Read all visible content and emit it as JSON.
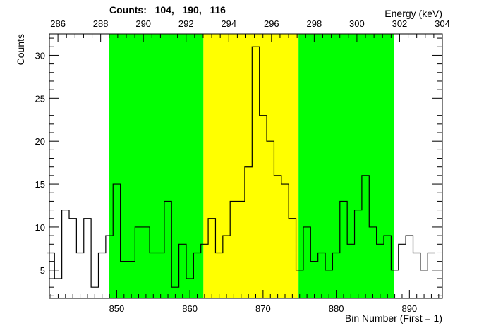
{
  "chart_data": {
    "type": "histogram",
    "title": "Counts:   104,   190,   116",
    "ylabel": "Counts",
    "xlabel": "Bin Number (First = 1)",
    "x2label": "Energy (keV)",
    "xlim": [
      840.8,
      894.5
    ],
    "ylim": [
      1.7,
      32.5
    ],
    "x2lim": [
      285.6,
      304.0
    ],
    "bins": [
      {
        "x": 841,
        "y": 7
      },
      {
        "x": 842,
        "y": 4
      },
      {
        "x": 843,
        "y": 12
      },
      {
        "x": 844,
        "y": 11
      },
      {
        "x": 845,
        "y": 7
      },
      {
        "x": 846,
        "y": 11
      },
      {
        "x": 847,
        "y": 3
      },
      {
        "x": 848,
        "y": 7
      },
      {
        "x": 849,
        "y": 9
      },
      {
        "x": 850,
        "y": 15
      },
      {
        "x": 851,
        "y": 6
      },
      {
        "x": 852,
        "y": 6
      },
      {
        "x": 853,
        "y": 10
      },
      {
        "x": 854,
        "y": 10
      },
      {
        "x": 855,
        "y": 7
      },
      {
        "x": 856,
        "y": 7
      },
      {
        "x": 857,
        "y": 13
      },
      {
        "x": 858,
        "y": 3
      },
      {
        "x": 859,
        "y": 8
      },
      {
        "x": 860,
        "y": 4
      },
      {
        "x": 861,
        "y": 7
      },
      {
        "x": 862,
        "y": 8
      },
      {
        "x": 863,
        "y": 11
      },
      {
        "x": 864,
        "y": 7
      },
      {
        "x": 865,
        "y": 9
      },
      {
        "x": 866,
        "y": 13
      },
      {
        "x": 867,
        "y": 13
      },
      {
        "x": 868,
        "y": 17
      },
      {
        "x": 869,
        "y": 31
      },
      {
        "x": 870,
        "y": 23
      },
      {
        "x": 871,
        "y": 20
      },
      {
        "x": 872,
        "y": 16
      },
      {
        "x": 873,
        "y": 15
      },
      {
        "x": 874,
        "y": 11
      },
      {
        "x": 875,
        "y": 5
      },
      {
        "x": 876,
        "y": 10
      },
      {
        "x": 877,
        "y": 6
      },
      {
        "x": 878,
        "y": 7
      },
      {
        "x": 879,
        "y": 5
      },
      {
        "x": 880,
        "y": 7
      },
      {
        "x": 881,
        "y": 13
      },
      {
        "x": 882,
        "y": 8
      },
      {
        "x": 883,
        "y": 12
      },
      {
        "x": 884,
        "y": 16
      },
      {
        "x": 885,
        "y": 10
      },
      {
        "x": 886,
        "y": 8
      },
      {
        "x": 887,
        "y": 9
      },
      {
        "x": 888,
        "y": 5
      },
      {
        "x": 889,
        "y": 8
      },
      {
        "x": 890,
        "y": 9
      },
      {
        "x": 891,
        "y": 7
      },
      {
        "x": 892,
        "y": 5
      },
      {
        "x": 893,
        "y": 7
      }
    ],
    "regions": [
      {
        "from": 848.9,
        "to": 861.85,
        "color": "#00ff00"
      },
      {
        "from": 861.85,
        "to": 874.85,
        "color": "#ffff00"
      },
      {
        "from": 874.85,
        "to": 887.85,
        "color": "#00ff00"
      }
    ],
    "x_ticks": [
      850,
      860,
      870,
      880,
      890
    ],
    "y_ticks": [
      5,
      10,
      15,
      20,
      25,
      30
    ],
    "x2_ticks": [
      286,
      288,
      290,
      292,
      294,
      296,
      298,
      300,
      302,
      304
    ],
    "line_color": "#000000"
  }
}
